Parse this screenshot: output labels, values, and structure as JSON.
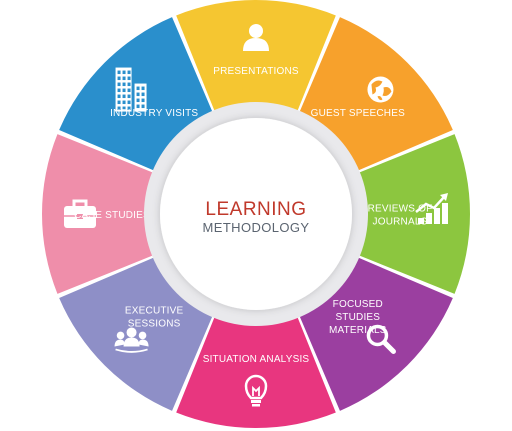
{
  "center": {
    "title": "LEARNING",
    "subtitle": "METHODOLOGY"
  },
  "segments": [
    {
      "lines": [
        "PRESENTATIONS"
      ],
      "color": "#f5c631",
      "icon": "person-icon"
    },
    {
      "lines": [
        "GUEST SPEECHES"
      ],
      "color": "#f7a12c",
      "icon": "globe-icon"
    },
    {
      "lines": [
        "REVIEWS OF",
        "JOURNALS"
      ],
      "color": "#8cc63f",
      "icon": "growth-chart-icon"
    },
    {
      "lines": [
        "FOCUSED",
        "STUDIES",
        "MATERIALS"
      ],
      "color": "#9b3fa0",
      "icon": "magnifier-icon"
    },
    {
      "lines": [
        "SITUATION ANALYSIS"
      ],
      "color": "#e8367f",
      "icon": "lightbulb-icon"
    },
    {
      "lines": [
        "EXECUTIVE",
        "SESSIONS"
      ],
      "color": "#8e8fc7",
      "icon": "team-icon"
    },
    {
      "lines": [
        "CASE STUDIES"
      ],
      "color": "#ef8eaa",
      "icon": "briefcase-icon"
    },
    {
      "lines": [
        "INDUSTRY VISITS"
      ],
      "color": "#2a8fcc",
      "icon": "buildings-icon"
    }
  ]
}
